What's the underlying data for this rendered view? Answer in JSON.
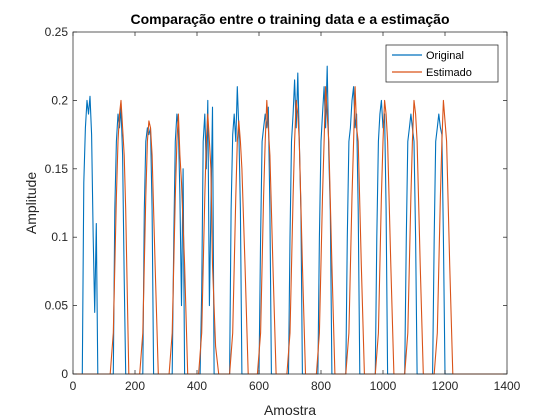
{
  "chart_data": {
    "type": "line",
    "title": "Comparação entre o training data e a estimação",
    "xlabel": "Amostra",
    "ylabel": "Amplitude",
    "xlim": [
      0,
      1400
    ],
    "ylim": [
      0,
      0.25
    ],
    "xticks": [
      0,
      200,
      400,
      600,
      800,
      1000,
      1200,
      1400
    ],
    "yticks": [
      0,
      0.05,
      0.1,
      0.15,
      0.2,
      0.25
    ],
    "xtick_labels": [
      "0",
      "200",
      "400",
      "600",
      "800",
      "1000",
      "1200",
      "1400"
    ],
    "ytick_labels": [
      "0",
      "0.05",
      "0.1",
      "0.15",
      "0.2",
      "0.25"
    ],
    "grid": false,
    "legend_position": "top-right",
    "series": [
      {
        "name": "Original",
        "color": "#0072BD",
        "x": [
          0,
          30,
          35,
          40,
          45,
          50,
          55,
          60,
          65,
          70,
          75,
          80,
          130,
          135,
          140,
          145,
          150,
          155,
          160,
          165,
          170,
          225,
          230,
          235,
          240,
          245,
          250,
          255,
          260,
          320,
          325,
          330,
          335,
          340,
          345,
          350,
          355,
          360,
          410,
          415,
          420,
          425,
          430,
          435,
          440,
          445,
          450,
          455,
          505,
          510,
          515,
          520,
          525,
          530,
          535,
          540,
          545,
          600,
          605,
          610,
          615,
          620,
          625,
          630,
          635,
          640,
          695,
          700,
          705,
          710,
          715,
          720,
          725,
          730,
          735,
          740,
          790,
          795,
          800,
          805,
          810,
          815,
          820,
          825,
          830,
          835,
          880,
          885,
          890,
          895,
          900,
          905,
          910,
          915,
          920,
          925,
          975,
          980,
          985,
          990,
          995,
          1000,
          1005,
          1010,
          1015,
          1070,
          1075,
          1080,
          1085,
          1090,
          1095,
          1100,
          1105,
          1110,
          1160,
          1165,
          1170,
          1175,
          1180,
          1185,
          1190,
          1195,
          1200,
          1400
        ],
        "y": [
          0,
          0,
          0.14,
          0.18,
          0.2,
          0.19,
          0.203,
          0.175,
          0.1,
          0.045,
          0.11,
          0,
          0,
          0.12,
          0.17,
          0.19,
          0.18,
          0.195,
          0.16,
          0.07,
          0,
          0,
          0.12,
          0.17,
          0.18,
          0.175,
          0.18,
          0.12,
          0,
          0,
          0.1,
          0.17,
          0.19,
          0.18,
          0.13,
          0.05,
          0.15,
          0,
          0,
          0.06,
          0.17,
          0.19,
          0.15,
          0.2,
          0.05,
          0.12,
          0.195,
          0,
          0,
          0.12,
          0.175,
          0.19,
          0.17,
          0.21,
          0.18,
          0.12,
          0,
          0,
          0.1,
          0.17,
          0.18,
          0.19,
          0.18,
          0.195,
          0.12,
          0,
          0,
          0.1,
          0.17,
          0.19,
          0.215,
          0.18,
          0.22,
          0.17,
          0.12,
          0,
          0,
          0.1,
          0.17,
          0.19,
          0.21,
          0.18,
          0.225,
          0.16,
          0.12,
          0,
          0,
          0.1,
          0.17,
          0.18,
          0.2,
          0.21,
          0.18,
          0.19,
          0.12,
          0,
          0,
          0.1,
          0.17,
          0.19,
          0.2,
          0.18,
          0.19,
          0.12,
          0,
          0,
          0.1,
          0.17,
          0.18,
          0.19,
          0.18,
          0.17,
          0.1,
          0,
          0,
          0.1,
          0.17,
          0.18,
          0.19,
          0.18,
          0.175,
          0.1,
          0,
          0
        ]
      },
      {
        "name": "Estimado",
        "color": "#D95319",
        "x": [
          0,
          120,
          130,
          140,
          145,
          150,
          155,
          160,
          165,
          170,
          180,
          215,
          225,
          235,
          240,
          245,
          250,
          255,
          265,
          275,
          310,
          320,
          330,
          335,
          340,
          345,
          350,
          360,
          370,
          405,
          415,
          425,
          430,
          435,
          440,
          445,
          450,
          460,
          470,
          505,
          515,
          525,
          530,
          535,
          540,
          545,
          555,
          565,
          595,
          605,
          615,
          620,
          625,
          630,
          635,
          645,
          655,
          690,
          700,
          710,
          715,
          720,
          725,
          730,
          740,
          750,
          785,
          795,
          805,
          810,
          815,
          820,
          825,
          835,
          845,
          880,
          890,
          900,
          905,
          910,
          915,
          920,
          930,
          940,
          975,
          985,
          995,
          1000,
          1005,
          1010,
          1015,
          1025,
          1035,
          1070,
          1080,
          1090,
          1095,
          1100,
          1105,
          1110,
          1120,
          1130,
          1165,
          1175,
          1185,
          1190,
          1195,
          1200,
          1205,
          1215,
          1225,
          1240,
          1400
        ],
        "y": [
          0,
          0,
          0.03,
          0.13,
          0.17,
          0.19,
          0.2,
          0.18,
          0.16,
          0.12,
          0,
          0,
          0.03,
          0.13,
          0.17,
          0.185,
          0.18,
          0.16,
          0.08,
          0,
          0,
          0.03,
          0.13,
          0.17,
          0.19,
          0.16,
          0.14,
          0.08,
          0,
          0,
          0.03,
          0.13,
          0.17,
          0.19,
          0.17,
          0.15,
          0.08,
          0.02,
          0,
          0,
          0.03,
          0.13,
          0.17,
          0.185,
          0.17,
          0.15,
          0.08,
          0,
          0,
          0.03,
          0.13,
          0.17,
          0.2,
          0.18,
          0.16,
          0.08,
          0,
          0,
          0.03,
          0.13,
          0.17,
          0.2,
          0.19,
          0.17,
          0.08,
          0,
          0,
          0.03,
          0.13,
          0.17,
          0.21,
          0.19,
          0.17,
          0.08,
          0,
          0,
          0.03,
          0.13,
          0.17,
          0.21,
          0.18,
          0.17,
          0.08,
          0,
          0,
          0.03,
          0.13,
          0.17,
          0.2,
          0.19,
          0.17,
          0.08,
          0,
          0,
          0.03,
          0.13,
          0.17,
          0.2,
          0.19,
          0.17,
          0.08,
          0,
          0,
          0.03,
          0.13,
          0.17,
          0.2,
          0.185,
          0.17,
          0.08,
          0,
          0,
          0
        ]
      }
    ]
  }
}
